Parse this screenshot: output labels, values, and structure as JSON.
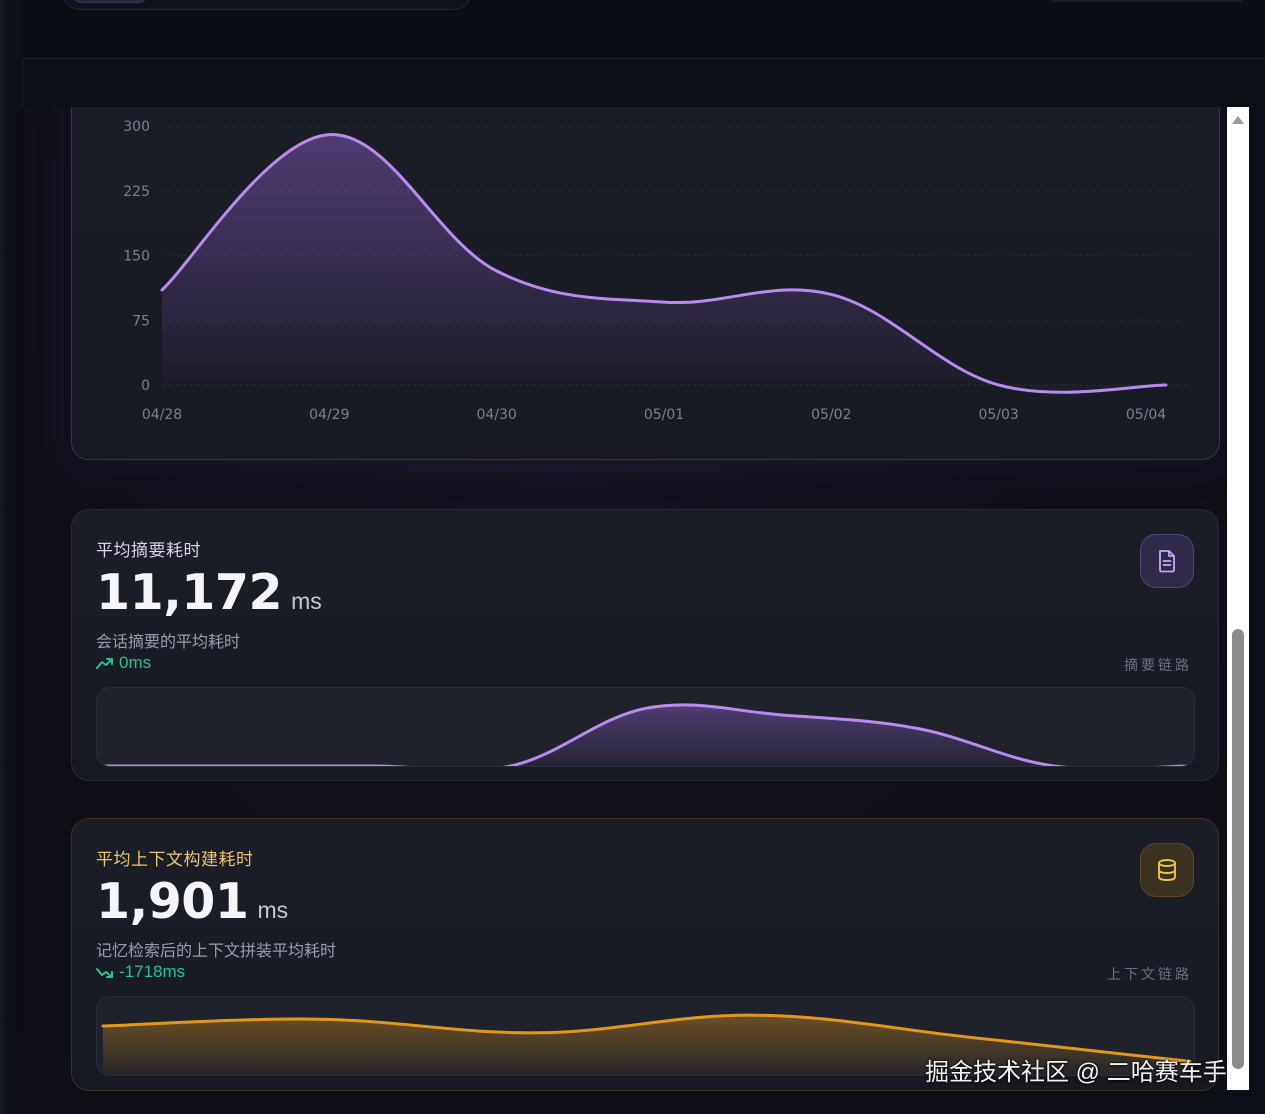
{
  "chart_data": {
    "type": "area",
    "categories": [
      "04/28",
      "04/29",
      "04/30",
      "05/01",
      "05/02",
      "05/03",
      "05/04"
    ],
    "series": [
      {
        "values": [
          110,
          290,
          132,
          96,
          105,
          0,
          0
        ]
      }
    ],
    "ylim": [
      0,
      300
    ],
    "yticks": [
      "0",
      "75",
      "150",
      "225",
      "300"
    ],
    "grid": true,
    "color": "#b98af0"
  },
  "cards": [
    {
      "title": "平均摘要耗时",
      "value": "11,172",
      "unit": "ms",
      "description": "会话摘要的平均耗时",
      "trend": "0ms",
      "trend_direction": "up",
      "chain_label": "摘要链路",
      "icon": "document-icon",
      "color": "#b98af0",
      "sparkline": [
        0,
        0,
        0,
        0,
        0.85,
        0.75,
        0.55,
        0,
        0
      ]
    },
    {
      "title": "平均上下文构建耗时",
      "value": "1,901",
      "unit": "ms",
      "description": "记忆检索后的上下文拼装平均耗时",
      "trend": "-1718ms",
      "trend_direction": "down",
      "chain_label": "上下文链路",
      "icon": "database-icon",
      "color": "#e1971b",
      "sparkline": [
        0.72,
        0.82,
        0.62,
        0.88,
        0.55,
        0.2
      ]
    }
  ],
  "watermark": "掘金技术社区 @ 二哈赛车手"
}
